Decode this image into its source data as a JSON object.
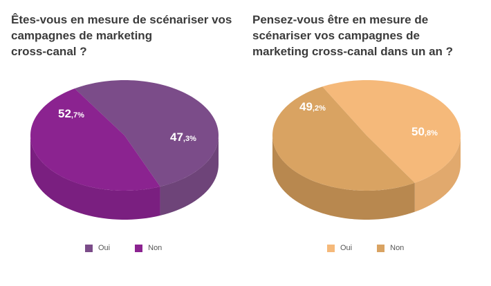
{
  "chart_data": [
    {
      "type": "pie",
      "title": "Êtes-vous en mesure de scénariser vos\ncampagnes de marketing\ncross-canal ?",
      "categories": [
        "Oui",
        "Non"
      ],
      "values": [
        52.7,
        47.3
      ],
      "labels": [
        {
          "main": "52",
          "decimal": ",7%"
        },
        {
          "main": "47",
          "decimal": ",3%"
        }
      ],
      "colors": {
        "top": [
          "#7b4c89",
          "#8b2390"
        ],
        "side": [
          "#6e4479",
          "#7a1f80"
        ],
        "label": "#ffffff"
      },
      "legend": {
        "placement": "bottom",
        "items": [
          {
            "label": "Oui",
            "color": "#7b4c89"
          },
          {
            "label": "Non",
            "color": "#8b2390"
          }
        ]
      }
    },
    {
      "type": "pie",
      "title": "Pensez-vous être en mesure de\nscénariser vos campagnes de\nmarketing cross-canal  dans un an ?",
      "categories": [
        "Oui",
        "Non"
      ],
      "values": [
        49.2,
        50.8
      ],
      "labels": [
        {
          "main": "49",
          "decimal": ",2%"
        },
        {
          "main": "50",
          "decimal": ",8%"
        }
      ],
      "colors": {
        "top": [
          "#f5b97a",
          "#d9a362"
        ],
        "side": [
          "#e1a96d",
          "#b8884f"
        ],
        "label": "#ffffff"
      },
      "legend": {
        "placement": "bottom",
        "items": [
          {
            "label": "Oui",
            "color": "#f5b97a"
          },
          {
            "label": "Non",
            "color": "#d9a362"
          }
        ]
      }
    }
  ]
}
